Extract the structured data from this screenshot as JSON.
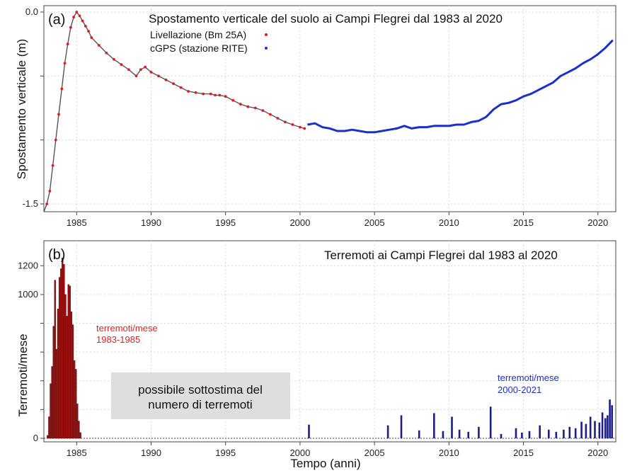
{
  "chart_data": [
    {
      "panel": "(a)",
      "type": "line",
      "title": "Spostamento verticale del suolo ai Campi Flegrei dal 1983 al 2020",
      "ylabel": "Spostamento verticale (m)",
      "xlim": [
        1982.8,
        2021.2
      ],
      "ylim": [
        -1.5,
        0.0
      ],
      "xticks": [
        "1985",
        "1990",
        "1995",
        "2000",
        "2005",
        "2010",
        "2015",
        "2020"
      ],
      "yticks": [
        "0.0",
        "-1.5"
      ],
      "grid": true,
      "legend_placement": "top-center",
      "series": [
        {
          "name": "Livellazione (Bm 25A)",
          "color": "#e3191c",
          "x": [
            1983.0,
            1983.2,
            1983.4,
            1983.6,
            1983.8,
            1984.0,
            1984.2,
            1984.4,
            1984.6,
            1984.8,
            1985.0,
            1985.2,
            1985.4,
            1985.6,
            1985.8,
            1986.0,
            1986.5,
            1987.0,
            1987.5,
            1988.0,
            1988.5,
            1989.0,
            1989.3,
            1989.6,
            1990.0,
            1990.5,
            1991.0,
            1991.5,
            1992.0,
            1992.5,
            1993.0,
            1993.5,
            1994.0,
            1994.3,
            1994.6,
            1995.0,
            1995.5,
            1996.0,
            1996.5,
            1997.0,
            1997.5,
            1998.0,
            1998.5,
            1999.0,
            1999.5,
            2000.0,
            2000.3
          ],
          "y": [
            -1.5,
            -1.4,
            -1.2,
            -1.0,
            -0.8,
            -0.6,
            -0.4,
            -0.25,
            -0.12,
            -0.04,
            0.0,
            -0.03,
            -0.07,
            -0.11,
            -0.15,
            -0.2,
            -0.26,
            -0.32,
            -0.37,
            -0.41,
            -0.45,
            -0.5,
            -0.45,
            -0.43,
            -0.47,
            -0.5,
            -0.53,
            -0.56,
            -0.59,
            -0.62,
            -0.63,
            -0.64,
            -0.64,
            -0.65,
            -0.65,
            -0.66,
            -0.69,
            -0.72,
            -0.74,
            -0.75,
            -0.77,
            -0.8,
            -0.83,
            -0.86,
            -0.88,
            -0.9,
            -0.91
          ]
        },
        {
          "name": "cGPS (stazione RITE)",
          "color": "#1a2fcf",
          "x": [
            2000.5,
            2001.0,
            2001.5,
            2002.0,
            2002.5,
            2003.0,
            2003.5,
            2004.0,
            2004.5,
            2005.0,
            2005.5,
            2006.0,
            2006.5,
            2007.0,
            2007.5,
            2008.0,
            2008.5,
            2009.0,
            2009.5,
            2010.0,
            2010.5,
            2011.0,
            2011.5,
            2012.0,
            2012.5,
            2013.0,
            2013.5,
            2014.0,
            2014.5,
            2015.0,
            2015.5,
            2016.0,
            2016.5,
            2017.0,
            2017.5,
            2018.0,
            2018.5,
            2019.0,
            2019.5,
            2020.0,
            2020.5,
            2021.0
          ],
          "y": [
            -0.88,
            -0.87,
            -0.9,
            -0.91,
            -0.93,
            -0.93,
            -0.92,
            -0.93,
            -0.94,
            -0.94,
            -0.93,
            -0.92,
            -0.91,
            -0.89,
            -0.91,
            -0.9,
            -0.9,
            -0.89,
            -0.89,
            -0.89,
            -0.88,
            -0.88,
            -0.86,
            -0.85,
            -0.82,
            -0.76,
            -0.72,
            -0.71,
            -0.69,
            -0.66,
            -0.64,
            -0.61,
            -0.58,
            -0.55,
            -0.5,
            -0.47,
            -0.44,
            -0.4,
            -0.37,
            -0.33,
            -0.28,
            -0.22
          ]
        }
      ]
    },
    {
      "panel": "(b)",
      "type": "bar",
      "title": "Terremoti ai Campi Flegrei dal 1983 al 2020",
      "xlabel": "Tempo (anni)",
      "ylabel": "Terremoti/mese",
      "xlim": [
        1982.8,
        2021.2
      ],
      "ylim": [
        0,
        1300
      ],
      "xticks": [
        "1985",
        "1990",
        "1995",
        "2000",
        "2005",
        "2010",
        "2015",
        "2020"
      ],
      "yticks": [
        "0",
        "200",
        "400",
        "600",
        "800",
        "1000",
        "1200"
      ],
      "grid": true,
      "annotations": {
        "red_note": [
          "terremoti/mese",
          "1983-1985"
        ],
        "blue_note": [
          "terremoti/mese",
          "2000-2021"
        ],
        "box_note": [
          "possibile sottostima del",
          "numero di terremoti"
        ]
      },
      "series": [
        {
          "name": "1983-1985",
          "color": "#9b1111",
          "x": [
            1983.05,
            1983.15,
            1983.25,
            1983.35,
            1983.45,
            1983.55,
            1983.65,
            1983.75,
            1983.85,
            1983.95,
            1984.05,
            1984.15,
            1984.25,
            1984.35,
            1984.45,
            1984.55,
            1984.65,
            1984.75,
            1984.85,
            1984.95,
            1985.05,
            1985.15,
            1985.25
          ],
          "values": [
            20,
            150,
            380,
            500,
            780,
            1100,
            620,
            900,
            1120,
            1180,
            1255,
            1210,
            1000,
            850,
            1070,
            1060,
            880,
            790,
            540,
            480,
            240,
            120,
            40
          ]
        },
        {
          "name": "2000-2021",
          "color": "#1c1f8a",
          "x": [
            2000.6,
            2005.9,
            2006.8,
            2008.0,
            2009.0,
            2009.6,
            2010.2,
            2010.7,
            2011.3,
            2012.0,
            2012.8,
            2013.5,
            2014.5,
            2014.9,
            2015.4,
            2016.1,
            2016.7,
            2017.2,
            2017.7,
            2018.1,
            2018.5,
            2018.9,
            2019.2,
            2019.5,
            2019.8,
            2020.1,
            2020.3,
            2020.5,
            2020.65,
            2020.8,
            2020.95
          ],
          "values": [
            95,
            90,
            160,
            55,
            175,
            50,
            150,
            60,
            45,
            80,
            220,
            30,
            70,
            40,
            50,
            90,
            60,
            45,
            60,
            80,
            70,
            115,
            100,
            150,
            120,
            110,
            180,
            140,
            160,
            270,
            230
          ]
        }
      ]
    }
  ]
}
